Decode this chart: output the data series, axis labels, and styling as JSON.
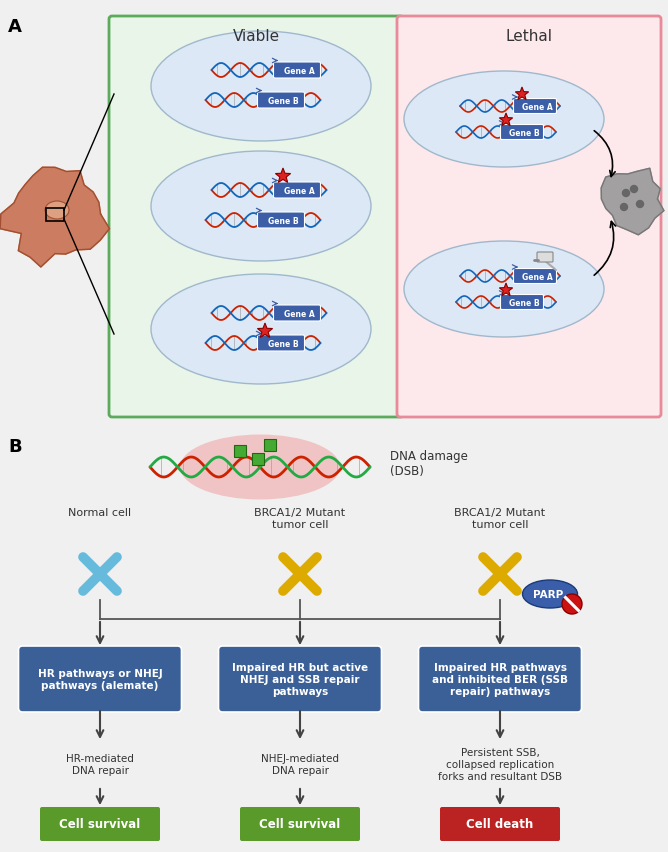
{
  "fig_width": 6.68,
  "fig_height": 8.53,
  "dpi": 100,
  "bg_color": "#f0f0f0",
  "panel_A_label": "A",
  "panel_B_label": "B",
  "viable_label": "Viable",
  "lethal_label": "Lethal",
  "viable_bg": "#e8f5e8",
  "lethal_bg": "#fde8ec",
  "viable_border": "#5caa5c",
  "lethal_border": "#e88a9a",
  "cell_ellipse_color": "#dce8f5",
  "cell_ellipse_border": "#a0b8cc",
  "gene_box_color": "#3b5ea6",
  "dna_red": "#cc2200",
  "dna_blue": "#1166bb",
  "dna_green": "#22aa44",
  "star_color": "#dd2222",
  "blue_box_color": "#3b6098",
  "green_outcome": "#5a9a2a",
  "red_outcome": "#bb2222",
  "cancer_cell_color": "#c97050",
  "cancer_cell_border": "#a05030",
  "nucleus_color": "#dda080",
  "death_cell_color": "#999999",
  "parp_ellipse_color": "#3a5eaa",
  "no_sign_color": "#cc1111",
  "chrom_blue": "#66bbdd",
  "chrom_yellow": "#ddaa00",
  "normal_cell_label": "Normal cell",
  "mutant1_label": "BRCA1/2 Mutant\ntumor cell",
  "mutant2_label": "BRCA1/2 Mutant\ntumor cell",
  "box1_text": "HR pathways or NHEJ\npathways (alemate)",
  "box2_text": "Impaired HR but active\nNHEJ and SSB repair\npathways",
  "box3_text": "Impaired HR pathways\nand inhibited BER (SSB\nrepair) pathways",
  "arrow1_mid": "HR-mediated\nDNA repair",
  "arrow2_mid": "NHEJ-mediated\nDNA repair",
  "arrow3_mid": "Persistent SSB,\ncollapsed replication\nforks and resultant DSB",
  "outcome1": "Cell survival",
  "outcome2": "Cell survival",
  "outcome3": "Cell death",
  "dna_damage_label": "DNA damage\n(DSB)",
  "parp_label": "PARP"
}
